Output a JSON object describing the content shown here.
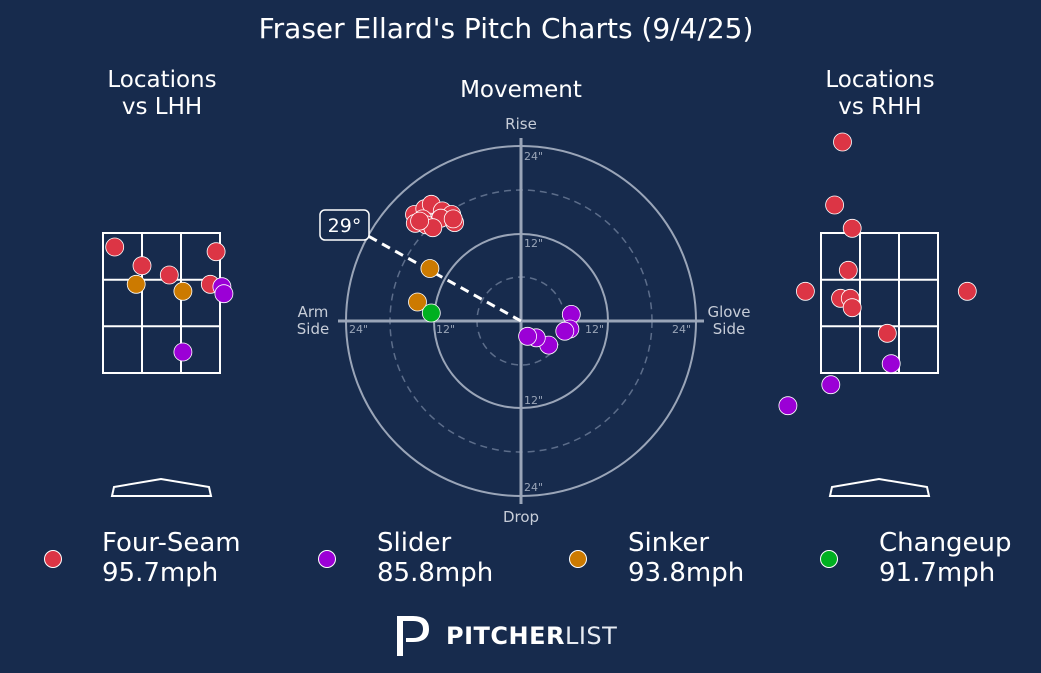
{
  "title": "Fraser Ellard's Pitch Charts (9/4/25)",
  "colors": {
    "background": "#172b4d",
    "Four-Seam": "#dc3545",
    "Slider": "#9b00d6",
    "Sinker": "#cc7a00",
    "Changeup": "#00b020"
  },
  "panels": {
    "lhh_title_line1": "Locations",
    "lhh_title_line2": "vs LHH",
    "movement_title": "Movement",
    "rhh_title_line1": "Locations",
    "rhh_title_line2": "vs RHH"
  },
  "movement_labels": {
    "rise": "Rise",
    "drop": "Drop",
    "arm_side_line1": "Arm",
    "arm_side_line2": "Side",
    "glove_side_line1": "Glove",
    "glove_side_line2": "Side",
    "ring_12": "12\"",
    "ring_24": "24\"",
    "arm_angle_label": "29°"
  },
  "chart_data": [
    {
      "type": "scatter",
      "name": "Locations vs LHH",
      "title": "Locations\nvs LHH",
      "strike_zone_grid": "3x3",
      "units": "zone widths (-1.5 to 1.5 = zone horizontally), zone heights (0 = bottom, 3 = top)",
      "points": [
        {
          "pitch": "Four-Seam",
          "x": -1.2,
          "y": 2.7
        },
        {
          "pitch": "Four-Seam",
          "x": -0.5,
          "y": 2.3
        },
        {
          "pitch": "Four-Seam",
          "x": 0.2,
          "y": 2.1
        },
        {
          "pitch": "Four-Seam",
          "x": 1.4,
          "y": 2.6
        },
        {
          "pitch": "Four-Seam",
          "x": 1.25,
          "y": 1.9
        },
        {
          "pitch": "Sinker",
          "x": -0.65,
          "y": 1.9
        },
        {
          "pitch": "Sinker",
          "x": 0.55,
          "y": 1.75
        },
        {
          "pitch": "Slider",
          "x": 1.55,
          "y": 1.85
        },
        {
          "pitch": "Slider",
          "x": 1.6,
          "y": 1.7
        },
        {
          "pitch": "Slider",
          "x": 0.55,
          "y": 0.45
        }
      ]
    },
    {
      "type": "scatter",
      "name": "Movement",
      "title": "Movement",
      "polar": true,
      "x_axis": "horizontal break (inches, arm side negative)",
      "y_axis": "induced vertical break (inches)",
      "rings": [
        6,
        12,
        18,
        24
      ],
      "arm_angle_deg": 29,
      "points": [
        {
          "pitch": "Four-Seam",
          "x": -14.6,
          "y": 14.6
        },
        {
          "pitch": "Four-Seam",
          "x": -13.2,
          "y": 15.4
        },
        {
          "pitch": "Four-Seam",
          "x": -12.3,
          "y": 16.0
        },
        {
          "pitch": "Four-Seam",
          "x": -10.8,
          "y": 15.1
        },
        {
          "pitch": "Four-Seam",
          "x": -9.5,
          "y": 14.6
        },
        {
          "pitch": "Four-Seam",
          "x": -13.5,
          "y": 14.0
        },
        {
          "pitch": "Four-Seam",
          "x": -14.5,
          "y": 13.4
        },
        {
          "pitch": "Four-Seam",
          "x": -11.0,
          "y": 14.1
        },
        {
          "pitch": "Four-Seam",
          "x": -9.1,
          "y": 13.5
        },
        {
          "pitch": "Four-Seam",
          "x": -13.0,
          "y": 13.2
        },
        {
          "pitch": "Four-Seam",
          "x": -12.1,
          "y": 12.8
        },
        {
          "pitch": "Four-Seam",
          "x": -13.9,
          "y": 13.7
        },
        {
          "pitch": "Four-Seam",
          "x": -9.3,
          "y": 14.0
        },
        {
          "pitch": "Sinker",
          "x": -12.5,
          "y": 7.2
        },
        {
          "pitch": "Sinker",
          "x": -14.2,
          "y": 2.6
        },
        {
          "pitch": "Changeup",
          "x": -12.3,
          "y": 1.1
        },
        {
          "pitch": "Slider",
          "x": 6.9,
          "y": 0.9
        },
        {
          "pitch": "Slider",
          "x": 6.7,
          "y": -1.1
        },
        {
          "pitch": "Slider",
          "x": 6.0,
          "y": -1.4
        },
        {
          "pitch": "Slider",
          "x": 3.8,
          "y": -3.3
        },
        {
          "pitch": "Slider",
          "x": 2.1,
          "y": -2.3
        },
        {
          "pitch": "Slider",
          "x": 0.9,
          "y": -2.1
        }
      ]
    },
    {
      "type": "scatter",
      "name": "Locations vs RHH",
      "title": "Locations\nvs RHH",
      "strike_zone_grid": "3x3",
      "units": "zone widths (-1.5 to 1.5 = zone horizontally), zone heights (0 = bottom, 3 = top)",
      "points": [
        {
          "pitch": "Four-Seam",
          "x": -0.95,
          "y": 4.95
        },
        {
          "pitch": "Four-Seam",
          "x": -1.15,
          "y": 3.6
        },
        {
          "pitch": "Four-Seam",
          "x": -0.7,
          "y": 3.1
        },
        {
          "pitch": "Four-Seam",
          "x": -0.8,
          "y": 2.2
        },
        {
          "pitch": "Four-Seam",
          "x": -1.9,
          "y": 1.75
        },
        {
          "pitch": "Four-Seam",
          "x": -1.0,
          "y": 1.6
        },
        {
          "pitch": "Four-Seam",
          "x": -0.75,
          "y": 1.6
        },
        {
          "pitch": "Four-Seam",
          "x": -0.7,
          "y": 1.4
        },
        {
          "pitch": "Four-Seam",
          "x": 0.2,
          "y": 0.85
        },
        {
          "pitch": "Four-Seam",
          "x": 2.25,
          "y": 1.75
        },
        {
          "pitch": "Slider",
          "x": 0.3,
          "y": 0.2
        },
        {
          "pitch": "Slider",
          "x": -1.25,
          "y": -0.25
        },
        {
          "pitch": "Slider",
          "x": -2.35,
          "y": -0.7
        }
      ]
    }
  ],
  "legend": [
    {
      "pitch": "Four-Seam",
      "speed": "95.7mph"
    },
    {
      "pitch": "Slider",
      "speed": "85.8mph"
    },
    {
      "pitch": "Sinker",
      "speed": "93.8mph"
    },
    {
      "pitch": "Changeup",
      "speed": "91.7mph"
    }
  ],
  "logo": {
    "bold": "PITCHER",
    "light": "LIST"
  }
}
